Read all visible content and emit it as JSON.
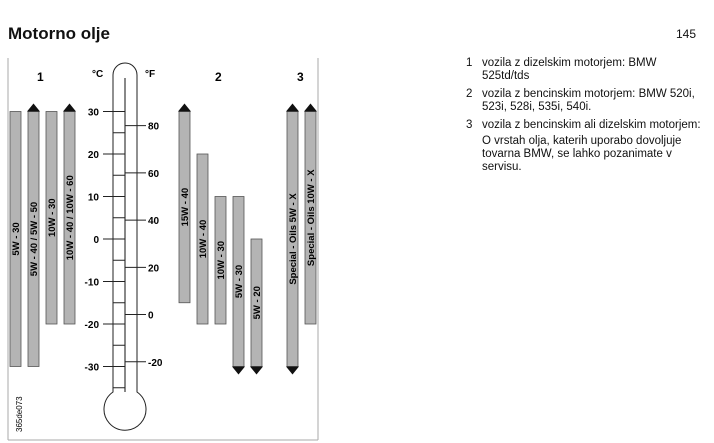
{
  "page": {
    "title": "Motorno olje",
    "number": "145"
  },
  "legend": [
    {
      "num": "1",
      "text": "vozila z dizelskim motorjem: BMW 525td/tds"
    },
    {
      "num": "2",
      "text": "vozila z bencinskim motorjem: BMW 520i, 523i, 528i, 535i, 540i."
    },
    {
      "num": "3",
      "text": "vozila z bencinskim ali dizelskim motorjem:"
    }
  ],
  "note": "O vrstah olja, katerih uporabo dovoljuje tovarna BMW, se lahko pozanimate v servisu.",
  "diagram": {
    "celsius_label": "°C",
    "fahrenheit_label": "°F",
    "celsius_ticks": [
      "30",
      "20",
      "10",
      "0",
      "-10",
      "-20",
      "-30"
    ],
    "fahrenheit_ticks": [
      "80",
      "60",
      "40",
      "20",
      "0",
      "-20"
    ],
    "figure_code": "365de073",
    "group_labels": [
      "1",
      "2",
      "3"
    ],
    "bar_color": "#b4b4b4",
    "oils": [
      {
        "group": "1",
        "label": "5W - 30",
        "max_c": 30,
        "min_c": -30,
        "open_top": false,
        "open_bottom": false
      },
      {
        "group": "1",
        "label": "5W - 40 / 5W - 50",
        "max_c": 30,
        "min_c": -30,
        "open_top": true,
        "open_bottom": false
      },
      {
        "group": "1",
        "label": "10W - 30",
        "max_c": 30,
        "min_c": -20,
        "open_top": false,
        "open_bottom": false
      },
      {
        "group": "1",
        "label": "10W - 40 / 10W - 60",
        "max_c": 30,
        "min_c": -20,
        "open_top": true,
        "open_bottom": false
      },
      {
        "group": "2",
        "label": "15W - 40",
        "max_c": 30,
        "min_c": -15,
        "open_top": true,
        "open_bottom": false
      },
      {
        "group": "2",
        "label": "10W - 40",
        "max_c": 20,
        "min_c": -20,
        "open_top": false,
        "open_bottom": false
      },
      {
        "group": "2",
        "label": "10W - 30",
        "max_c": 10,
        "min_c": -20,
        "open_top": false,
        "open_bottom": false
      },
      {
        "group": "2",
        "label": "5W - 30",
        "max_c": 10,
        "min_c": -30,
        "open_top": false,
        "open_bottom": true
      },
      {
        "group": "2",
        "label": "5W - 20",
        "max_c": 0,
        "min_c": -30,
        "open_top": false,
        "open_bottom": true
      },
      {
        "group": "3",
        "label": "Special - Oils 5W - X",
        "max_c": 30,
        "min_c": -30,
        "open_top": true,
        "open_bottom": true
      },
      {
        "group": "3",
        "label": "Special - Oils 10W - X",
        "max_c": 30,
        "min_c": -20,
        "open_top": true,
        "open_bottom": false
      }
    ]
  }
}
